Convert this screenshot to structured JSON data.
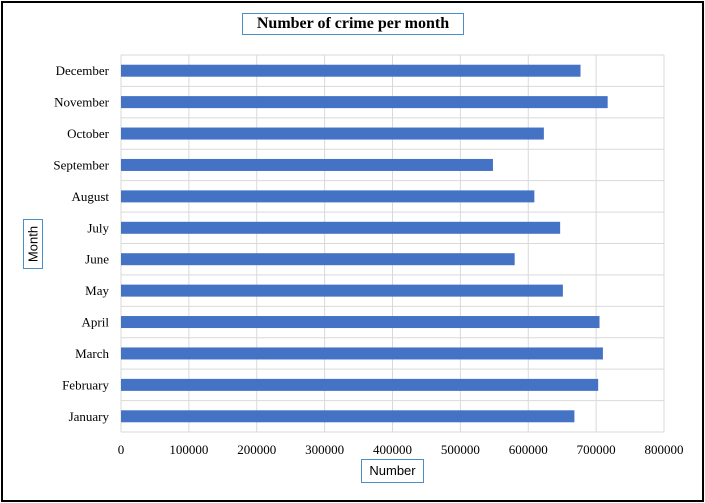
{
  "chart_data": {
    "type": "bar",
    "orientation": "horizontal",
    "title": "Number of crime per month",
    "xlabel": "Number",
    "ylabel": "Month",
    "categories": [
      "January",
      "February",
      "March",
      "April",
      "May",
      "June",
      "July",
      "August",
      "September",
      "October",
      "November",
      "December"
    ],
    "values": [
      668000,
      703000,
      710000,
      705000,
      651000,
      580000,
      647000,
      609000,
      548000,
      623000,
      717000,
      677000
    ],
    "xlim": [
      0,
      800000
    ],
    "xticks": [
      0,
      100000,
      200000,
      300000,
      400000,
      500000,
      600000,
      700000,
      800000
    ],
    "grid": true,
    "bar_color": "#4472c4",
    "grid_color": "#d9d9d9"
  }
}
